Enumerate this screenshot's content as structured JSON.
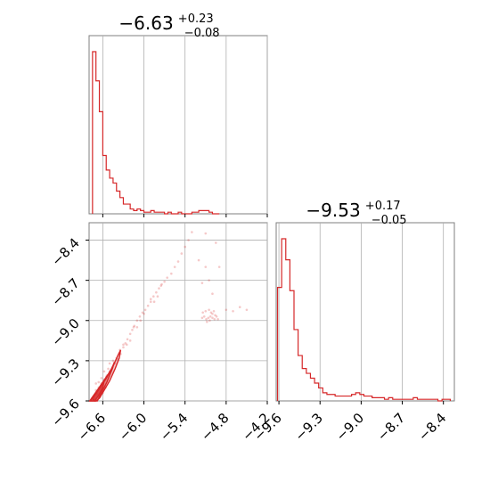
{
  "chart_data": [
    {
      "type": "histogram",
      "panel": "top-left",
      "title": {
        "value": "−6.63",
        "sup": "+0.23",
        "sub": "−0.08"
      },
      "xlim": [
        -6.8,
        -4.2
      ],
      "xticks": [
        -6.6,
        -6.0,
        -5.4,
        -4.8,
        -4.2
      ],
      "grid": true,
      "color": "#d62728",
      "bin_edges": [
        -6.75,
        -6.7,
        -6.65,
        -6.6,
        -6.55,
        -6.5,
        -6.45,
        -6.4,
        -6.35,
        -6.3,
        -6.25,
        -6.2,
        -6.15,
        -6.1,
        -6.05,
        -6.0,
        -5.95,
        -5.9,
        -5.85,
        -5.8,
        -5.75,
        -5.7,
        -5.65,
        -5.6,
        -5.55,
        -5.5,
        -5.45,
        -5.4,
        -5.35,
        -5.3,
        -5.25,
        -5.2,
        -5.15,
        -5.1,
        -5.05,
        -5.0,
        -4.95,
        -4.9
      ],
      "counts": [
        100,
        82,
        63,
        36,
        27,
        22,
        19,
        14,
        10,
        6,
        6,
        3,
        2,
        3,
        2,
        1,
        1,
        2,
        1,
        1,
        1,
        0,
        1,
        0,
        0,
        1,
        0,
        0,
        0,
        1,
        1,
        2,
        2,
        2,
        1,
        0,
        0
      ]
    },
    {
      "type": "histogram",
      "panel": "bottom-right",
      "title": {
        "value": "−9.53",
        "sup": "+0.17",
        "sub": "−0.05"
      },
      "xlim": [
        -9.62,
        -8.32
      ],
      "xticks": [
        -9.6,
        -9.3,
        -9.0,
        -8.7,
        -8.4
      ],
      "xtick_labels": [
        "−9.6",
        "−9.3",
        "−9.0",
        "−8.7",
        "−8.4"
      ],
      "grid": true,
      "color": "#d62728",
      "bin_edges": [
        -9.61,
        -9.58,
        -9.55,
        -9.52,
        -9.49,
        -9.46,
        -9.43,
        -9.4,
        -9.37,
        -9.34,
        -9.31,
        -9.28,
        -9.25,
        -9.22,
        -9.19,
        -9.16,
        -9.13,
        -9.1,
        -9.07,
        -9.04,
        -9.01,
        -8.98,
        -8.95,
        -8.92,
        -8.89,
        -8.86,
        -8.83,
        -8.8,
        -8.77,
        -8.74,
        -8.71,
        -8.68,
        -8.65,
        -8.62,
        -8.59,
        -8.56,
        -8.53,
        -8.5,
        -8.47,
        -8.44,
        -8.41,
        -8.38,
        -8.35
      ],
      "counts": [
        70,
        100,
        87,
        68,
        44,
        28,
        20,
        17,
        14,
        11,
        8,
        5,
        4,
        4,
        3,
        3,
        3,
        3,
        4,
        5,
        4,
        3,
        3,
        2,
        2,
        2,
        1,
        2,
        1,
        1,
        1,
        1,
        1,
        2,
        1,
        1,
        1,
        1,
        1,
        0,
        1,
        1
      ]
    },
    {
      "type": "scatter",
      "panel": "bottom-left",
      "xlim": [
        -6.8,
        -4.2
      ],
      "ylim": [
        -9.6,
        -8.27
      ],
      "xticks": [
        -6.6,
        -6.0,
        -5.4,
        -4.8,
        -4.2
      ],
      "xtick_labels": [
        "−6.6",
        "−6.0",
        "−5.4",
        "−4.8",
        "−4.2"
      ],
      "yticks": [
        -9.6,
        -9.3,
        -9.0,
        -8.7,
        -8.4
      ],
      "ytick_labels": [
        "−9.6",
        "−9.3",
        "−9.0",
        "−8.7",
        "−8.4"
      ],
      "grid": true,
      "color": "#d62728",
      "points": [
        [
          -6.7,
          -9.52
        ],
        [
          -6.66,
          -9.5
        ],
        [
          -6.62,
          -9.47
        ],
        [
          -6.58,
          -9.44
        ],
        [
          -6.54,
          -9.41
        ],
        [
          -6.5,
          -9.38
        ],
        [
          -6.46,
          -9.35
        ],
        [
          -6.42,
          -9.32
        ],
        [
          -6.38,
          -9.29
        ],
        [
          -6.34,
          -9.25
        ],
        [
          -6.3,
          -9.2
        ],
        [
          -6.27,
          -9.17
        ],
        [
          -6.24,
          -9.14
        ],
        [
          -6.2,
          -9.1
        ],
        [
          -6.17,
          -9.07
        ],
        [
          -6.14,
          -9.04
        ],
        [
          -6.1,
          -9.0
        ],
        [
          -6.06,
          -8.97
        ],
        [
          -6.02,
          -8.94
        ],
        [
          -5.98,
          -8.92
        ],
        [
          -5.94,
          -8.89
        ],
        [
          -5.9,
          -8.86
        ],
        [
          -5.86,
          -8.82
        ],
        [
          -5.82,
          -8.79
        ],
        [
          -5.78,
          -8.76
        ],
        [
          -5.74,
          -8.73
        ],
        [
          -5.7,
          -8.71
        ],
        [
          -5.66,
          -8.68
        ],
        [
          -5.6,
          -8.65
        ],
        [
          -5.55,
          -8.6
        ],
        [
          -5.5,
          -8.56
        ],
        [
          -5.45,
          -8.5
        ],
        [
          -5.4,
          -8.45
        ],
        [
          -5.35,
          -8.4
        ],
        [
          -5.3,
          -8.34
        ],
        [
          -6.2,
          -9.15
        ],
        [
          -6.1,
          -9.05
        ],
        [
          -5.9,
          -8.84
        ],
        [
          -6.3,
          -9.18
        ],
        [
          -6.05,
          -9.0
        ],
        [
          -6.15,
          -9.05
        ],
        [
          -6.4,
          -9.28
        ],
        [
          -6.0,
          -8.95
        ],
        [
          -5.85,
          -8.86
        ],
        [
          -5.75,
          -8.74
        ],
        [
          -5.8,
          -8.82
        ],
        [
          -6.25,
          -9.18
        ],
        [
          -6.35,
          -9.22
        ],
        [
          -5.2,
          -8.55
        ],
        [
          -5.1,
          -8.6
        ],
        [
          -5.05,
          -8.7
        ],
        [
          -5.0,
          -8.8
        ],
        [
          -4.9,
          -8.6
        ],
        [
          -4.95,
          -8.42
        ],
        [
          -5.1,
          -8.35
        ],
        [
          -5.0,
          -8.95
        ],
        [
          -5.15,
          -8.72
        ],
        [
          -5.15,
          -8.98
        ],
        [
          -5.12,
          -8.97
        ],
        [
          -5.09,
          -8.99
        ],
        [
          -5.06,
          -8.98
        ],
        [
          -5.03,
          -8.97
        ],
        [
          -5.0,
          -8.98
        ],
        [
          -4.97,
          -8.99
        ],
        [
          -4.94,
          -8.97
        ],
        [
          -5.1,
          -8.93
        ],
        [
          -5.05,
          -8.92
        ],
        [
          -5.02,
          -8.94
        ],
        [
          -4.98,
          -8.93
        ],
        [
          -4.96,
          -8.96
        ],
        [
          -5.14,
          -8.94
        ],
        [
          -5.04,
          -9.0
        ],
        [
          -5.08,
          -9.01
        ],
        [
          -4.92,
          -8.99
        ],
        [
          -4.6,
          -8.9
        ],
        [
          -4.5,
          -8.92
        ],
        [
          -4.7,
          -8.93
        ],
        [
          -4.8,
          -8.92
        ],
        [
          -6.62,
          -9.43
        ],
        [
          -6.58,
          -9.38
        ],
        [
          -6.66,
          -9.46
        ],
        [
          -6.55,
          -9.42
        ],
        [
          -6.5,
          -9.32
        ],
        [
          -6.45,
          -9.3
        ],
        [
          -6.52,
          -9.36
        ],
        [
          -6.68,
          -9.55
        ],
        [
          -6.64,
          -9.57
        ],
        [
          -6.6,
          -9.54
        ],
        [
          -6.56,
          -9.5
        ],
        [
          -6.72,
          -9.58
        ],
        [
          -6.7,
          -9.47
        ]
      ],
      "core_contours": [
        [
          [
            -6.79,
            -9.6
          ],
          [
            -6.75,
            -9.57
          ],
          [
            -6.68,
            -9.52
          ],
          [
            -6.6,
            -9.46
          ],
          [
            -6.52,
            -9.4
          ],
          [
            -6.45,
            -9.34
          ],
          [
            -6.38,
            -9.26
          ],
          [
            -6.34,
            -9.22
          ],
          [
            -6.36,
            -9.28
          ],
          [
            -6.42,
            -9.36
          ],
          [
            -6.5,
            -9.45
          ],
          [
            -6.58,
            -9.52
          ],
          [
            -6.65,
            -9.58
          ],
          [
            -6.7,
            -9.6
          ]
        ],
        [
          [
            -6.78,
            -9.6
          ],
          [
            -6.72,
            -9.56
          ],
          [
            -6.64,
            -9.5
          ],
          [
            -6.56,
            -9.44
          ],
          [
            -6.48,
            -9.37
          ],
          [
            -6.43,
            -9.31
          ],
          [
            -6.46,
            -9.36
          ],
          [
            -6.54,
            -9.46
          ],
          [
            -6.62,
            -9.54
          ],
          [
            -6.68,
            -9.6
          ]
        ],
        [
          [
            -6.76,
            -9.58
          ],
          [
            -6.7,
            -9.54
          ],
          [
            -6.62,
            -9.48
          ],
          [
            -6.58,
            -9.45
          ],
          [
            -6.6,
            -9.5
          ],
          [
            -6.66,
            -9.56
          ],
          [
            -6.72,
            -9.6
          ]
        ]
      ]
    }
  ]
}
